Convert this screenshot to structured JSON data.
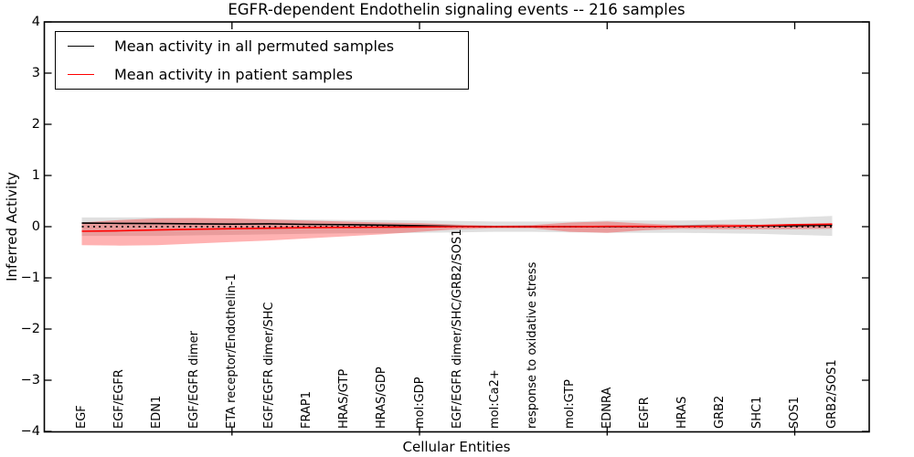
{
  "figure": {
    "title": "EGFR-dependent Endothelin signaling events -- 216 samples",
    "xlabel": "Cellular Entities",
    "ylabel": "Inferred Activity"
  },
  "legend": {
    "entries": [
      {
        "label": "Mean activity in all permuted samples",
        "color": "#000000"
      },
      {
        "label": "Mean activity in patient samples",
        "color": "#ff0000"
      }
    ]
  },
  "chart_data": {
    "type": "line",
    "title": "EGFR-dependent Endothelin signaling events -- 216 samples",
    "xlabel": "Cellular Entities",
    "ylabel": "Inferred Activity",
    "ylim": [
      -4,
      4
    ],
    "xlim": [
      0,
      22
    ],
    "grid": false,
    "legend_position": "upper left",
    "ytick_values": [
      4,
      3,
      2,
      1,
      0,
      -1,
      -2,
      -3,
      -4
    ],
    "ytick_labels": [
      "4",
      "3",
      "2",
      "1",
      "0",
      "−1",
      "−2",
      "−3",
      "−4"
    ],
    "xticks_major": [
      5,
      10,
      15,
      20
    ],
    "categories": [
      "EGF",
      "EGF/EGFR",
      "EDN1",
      "EGF/EGFR dimer",
      "ETA receptor/Endothelin-1",
      "EGF/EGFR dimer/SHC",
      "FRAP1",
      "HRAS/GTP",
      "HRAS/GDP",
      "mol:GDP",
      "EGF/EGFR dimer/SHC/GRB2/SOS1",
      "mol:Ca2+",
      "response to oxidative stress",
      "mol:GTP",
      "EDNRA",
      "EGFR",
      "HRAS",
      "GRB2",
      "SHC1",
      "SOS1",
      "GRB2/SOS1"
    ],
    "zero_line": {
      "y": 0,
      "style": "dotted",
      "color": "#000000"
    },
    "series": [
      {
        "name": "Mean activity in all permuted samples",
        "color": "#000000",
        "style": "solid",
        "values": [
          0.07,
          0.065,
          0.06,
          0.055,
          0.05,
          0.055,
          0.045,
          0.04,
          0.03,
          0.02,
          0.005,
          0.0,
          0.0,
          0.0,
          0.0,
          0.0,
          0.005,
          0.01,
          0.015,
          0.02,
          0.03
        ]
      },
      {
        "name": "Mean activity in patient samples",
        "color": "#ff0000",
        "style": "solid",
        "values": [
          -0.09,
          -0.08,
          -0.065,
          -0.05,
          -0.04,
          -0.03,
          -0.02,
          -0.015,
          -0.01,
          -0.005,
          0.0,
          0.0,
          0.0,
          0.0,
          0.005,
          0.005,
          0.0,
          0.01,
          0.02,
          0.04,
          0.05
        ]
      }
    ],
    "bands": [
      {
        "name": "permuted samples activity range",
        "color": "#000000",
        "opacity": 0.12,
        "upper": [
          0.18,
          0.18,
          0.18,
          0.17,
          0.16,
          0.15,
          0.14,
          0.13,
          0.13,
          0.12,
          0.11,
          0.1,
          0.1,
          0.1,
          0.12,
          0.12,
          0.12,
          0.13,
          0.15,
          0.18,
          0.21
        ],
        "lower": [
          -0.18,
          -0.18,
          -0.18,
          -0.17,
          -0.16,
          -0.15,
          -0.14,
          -0.13,
          -0.13,
          -0.12,
          -0.11,
          -0.1,
          -0.1,
          -0.11,
          -0.12,
          -0.12,
          -0.12,
          -0.13,
          -0.14,
          -0.16,
          -0.18
        ]
      },
      {
        "name": "patient samples activity range",
        "color": "#ff0000",
        "opacity": 0.3,
        "upper": [
          0.08,
          0.13,
          0.16,
          0.17,
          0.16,
          0.14,
          0.12,
          0.1,
          0.08,
          0.07,
          0.04,
          0.02,
          0.03,
          0.08,
          0.1,
          0.06,
          0.03,
          0.05,
          0.04,
          0.05,
          0.06
        ],
        "lower": [
          -0.36,
          -0.37,
          -0.36,
          -0.33,
          -0.3,
          -0.27,
          -0.23,
          -0.19,
          -0.15,
          -0.1,
          -0.05,
          -0.03,
          -0.03,
          -0.1,
          -0.12,
          -0.07,
          -0.04,
          -0.05,
          -0.05,
          -0.05,
          -0.04
        ]
      }
    ]
  }
}
